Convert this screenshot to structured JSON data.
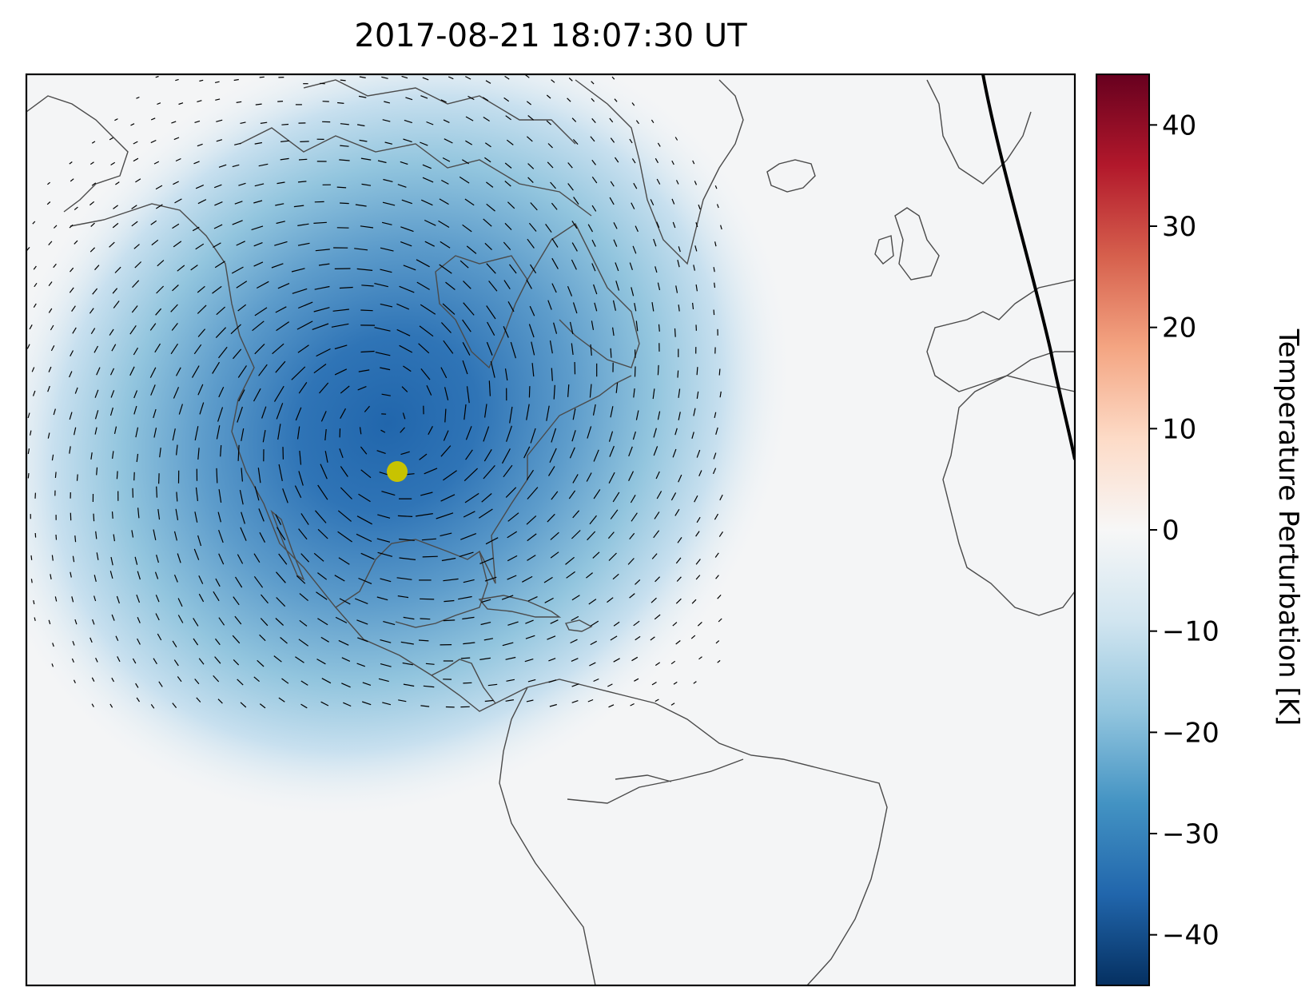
{
  "title": "2017-08-21 18:07:30 UT",
  "colorbar": {
    "label": "Temperature Perturbation [K]",
    "ticks": [
      {
        "value": 40,
        "label": "40"
      },
      {
        "value": 30,
        "label": "30"
      },
      {
        "value": 20,
        "label": "20"
      },
      {
        "value": 10,
        "label": "10"
      },
      {
        "value": 0,
        "label": "0"
      },
      {
        "value": -10,
        "label": "−10"
      },
      {
        "value": -20,
        "label": "−20"
      },
      {
        "value": -30,
        "label": "−30"
      },
      {
        "value": -40,
        "label": "−40"
      }
    ],
    "range": [
      -45,
      45
    ],
    "colormap": "RdBu_r"
  },
  "map": {
    "projection": "orthographic",
    "region": "North Atlantic, North America, South America, Western Europe, West Africa",
    "field": "temperature perturbation",
    "field_min_K": -42,
    "field_center": {
      "lon": -90,
      "lat": 39
    },
    "vectors": "wind perturbation arrows",
    "marker": {
      "label": "eclipse center",
      "lon": -90,
      "lat": 37.5,
      "color": "#c8c300"
    },
    "terminator_line": true
  },
  "colors": {
    "min": "#053061",
    "mid": "#f7f7f7",
    "max": "#67001f",
    "coastline": "#4a4a4a"
  }
}
